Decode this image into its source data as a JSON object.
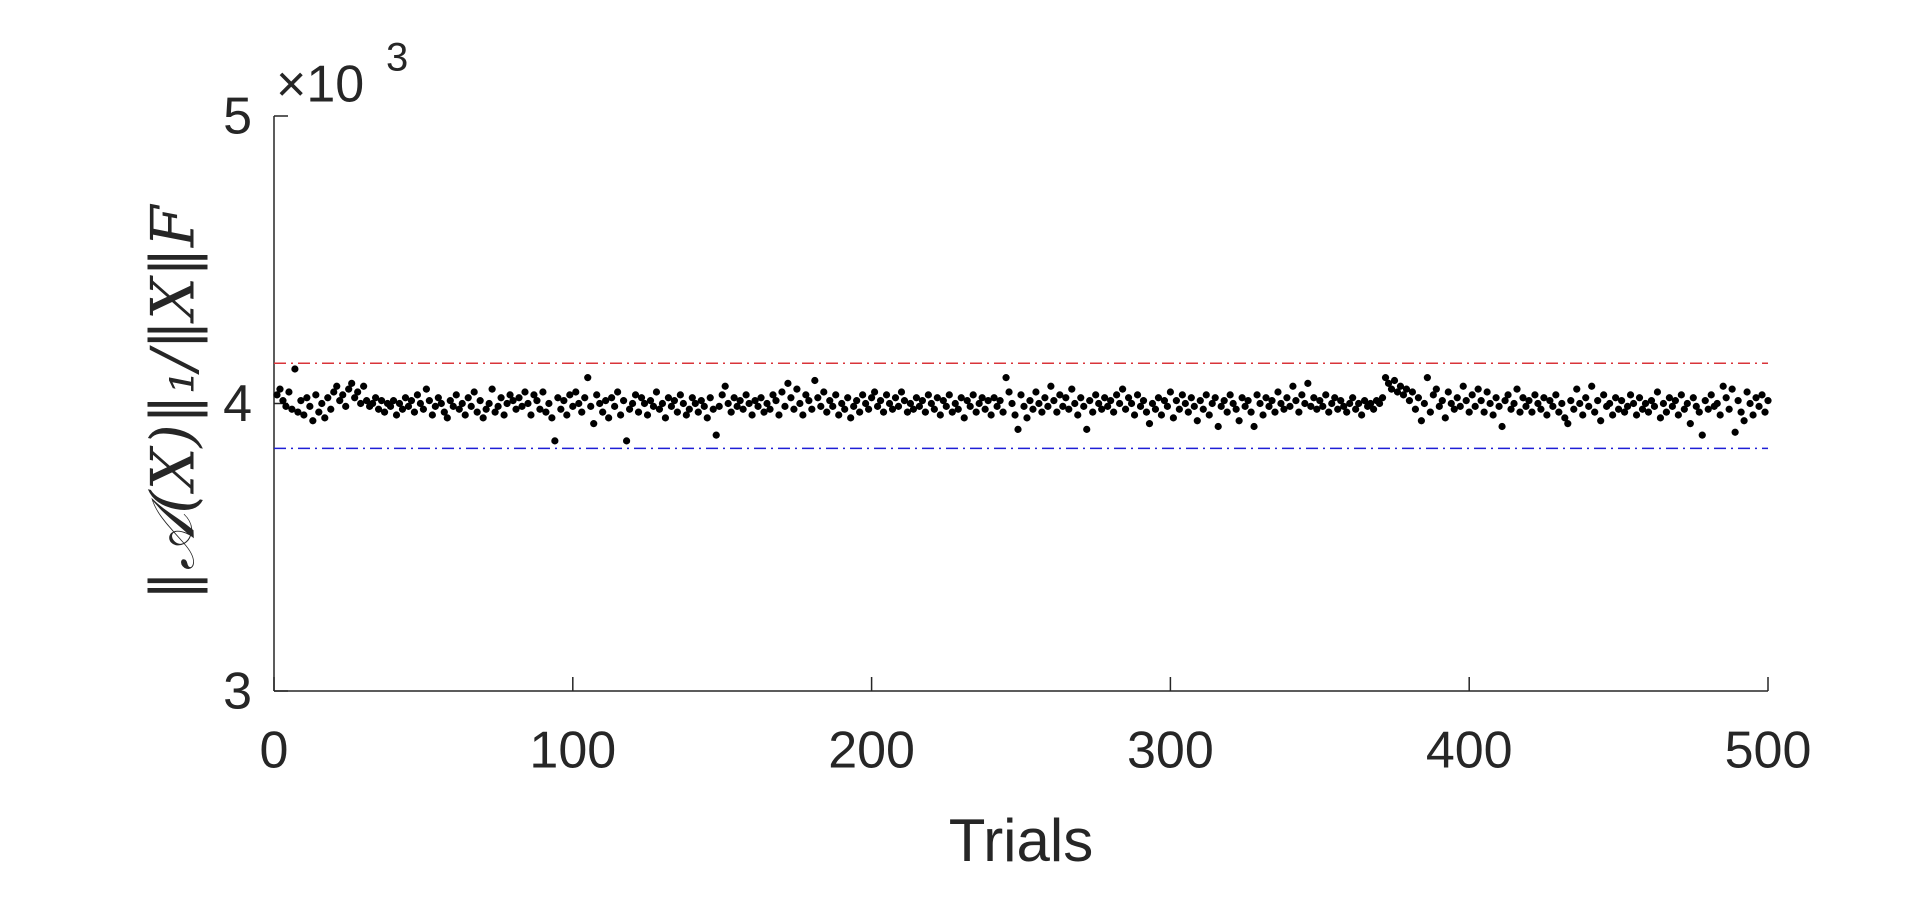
{
  "chart_data": {
    "type": "scatter",
    "xlabel": "Trials",
    "ylabel": "‖𝒜(X)‖₁/‖X‖F",
    "y_exponent_base": "×10",
    "y_exponent": "3",
    "xlim": [
      0,
      500
    ],
    "xticks": [
      0,
      100,
      200,
      300,
      400,
      500
    ],
    "ylim": [
      3,
      5
    ],
    "yticks": [
      3,
      4,
      5
    ],
    "color": "#000000",
    "hlines": [
      {
        "value": 4.14,
        "color": "#d9343a"
      },
      {
        "value": 3.844,
        "color": "#1f1fd6"
      }
    ],
    "x": [
      1,
      2,
      3,
      4,
      5,
      6,
      7,
      8,
      9,
      10,
      11,
      12,
      13,
      14,
      15,
      16,
      17,
      18,
      19,
      20,
      21,
      22,
      23,
      24,
      25,
      26,
      27,
      28,
      29,
      30,
      31,
      32,
      33,
      34,
      35,
      36,
      37,
      38,
      39,
      40,
      41,
      42,
      43,
      44,
      45,
      46,
      47,
      48,
      49,
      50,
      51,
      52,
      53,
      54,
      55,
      56,
      57,
      58,
      59,
      60,
      61,
      62,
      63,
      64,
      65,
      66,
      67,
      68,
      69,
      70,
      71,
      72,
      73,
      74,
      75,
      76,
      77,
      78,
      79,
      80,
      81,
      82,
      83,
      84,
      85,
      86,
      87,
      88,
      89,
      90,
      91,
      92,
      93,
      94,
      95,
      96,
      97,
      98,
      99,
      100,
      101,
      102,
      103,
      104,
      105,
      106,
      107,
      108,
      109,
      110,
      111,
      112,
      113,
      114,
      115,
      116,
      117,
      118,
      119,
      120,
      121,
      122,
      123,
      124,
      125,
      126,
      127,
      128,
      129,
      130,
      131,
      132,
      133,
      134,
      135,
      136,
      137,
      138,
      139,
      140,
      141,
      142,
      143,
      144,
      145,
      146,
      147,
      148,
      149,
      150,
      151,
      152,
      153,
      154,
      155,
      156,
      157,
      158,
      159,
      160,
      161,
      162,
      163,
      164,
      165,
      166,
      167,
      168,
      169,
      170,
      171,
      172,
      173,
      174,
      175,
      176,
      177,
      178,
      179,
      180,
      181,
      182,
      183,
      184,
      185,
      186,
      187,
      188,
      189,
      190,
      191,
      192,
      193,
      194,
      195,
      196,
      197,
      198,
      199,
      200,
      201,
      202,
      203,
      204,
      205,
      206,
      207,
      208,
      209,
      210,
      211,
      212,
      213,
      214,
      215,
      216,
      217,
      218,
      219,
      220,
      221,
      222,
      223,
      224,
      225,
      226,
      227,
      228,
      229,
      230,
      231,
      232,
      233,
      234,
      235,
      236,
      237,
      238,
      239,
      240,
      241,
      242,
      243,
      244,
      245,
      246,
      247,
      248,
      249,
      250,
      251,
      252,
      253,
      254,
      255,
      256,
      257,
      258,
      259,
      260,
      261,
      262,
      263,
      264,
      265,
      266,
      267,
      268,
      269,
      270,
      271,
      272,
      273,
      274,
      275,
      276,
      277,
      278,
      279,
      280,
      281,
      282,
      283,
      284,
      285,
      286,
      287,
      288,
      289,
      290,
      291,
      292,
      293,
      294,
      295,
      296,
      297,
      298,
      299,
      300,
      301,
      302,
      303,
      304,
      305,
      306,
      307,
      308,
      309,
      310,
      311,
      312,
      313,
      314,
      315,
      316,
      317,
      318,
      319,
      320,
      321,
      322,
      323,
      324,
      325,
      326,
      327,
      328,
      329,
      330,
      331,
      332,
      333,
      334,
      335,
      336,
      337,
      338,
      339,
      340,
      341,
      342,
      343,
      344,
      345,
      346,
      347,
      348,
      349,
      350,
      351,
      352,
      353,
      354,
      355,
      356,
      357,
      358,
      359,
      360,
      361,
      362,
      363,
      364,
      365,
      366,
      367,
      368,
      369,
      370,
      371,
      372,
      373,
      374,
      375,
      376,
      377,
      378,
      379,
      380,
      381,
      382,
      383,
      384,
      385,
      386,
      387,
      388,
      389,
      390,
      391,
      392,
      393,
      394,
      395,
      396,
      397,
      398,
      399,
      400,
      401,
      402,
      403,
      404,
      405,
      406,
      407,
      408,
      409,
      410,
      411,
      412,
      413,
      414,
      415,
      416,
      417,
      418,
      419,
      420,
      421,
      422,
      423,
      424,
      425,
      426,
      427,
      428,
      429,
      430,
      431,
      432,
      433,
      434,
      435,
      436,
      437,
      438,
      439,
      440,
      441,
      442,
      443,
      444,
      445,
      446,
      447,
      448,
      449,
      450,
      451,
      452,
      453,
      454,
      455,
      456,
      457,
      458,
      459,
      460,
      461,
      462,
      463,
      464,
      465,
      466,
      467,
      468,
      469,
      470,
      471,
      472,
      473,
      474,
      475,
      476,
      477,
      478,
      479,
      480,
      481,
      482,
      483,
      484,
      485,
      486,
      487,
      488,
      489,
      490,
      491,
      492,
      493,
      494,
      495,
      496,
      497,
      498,
      499,
      500
    ],
    "values": [
      4.03,
      4.05,
      4.01,
      3.99,
      4.04,
      3.98,
      4.12,
      3.97,
      4.01,
      3.96,
      4.02,
      3.99,
      3.94,
      4.03,
      3.97,
      4.0,
      3.95,
      4.02,
      3.98,
      4.04,
      4.06,
      4.01,
      4.03,
      3.99,
      4.05,
      4.07,
      4.02,
      4.04,
      4.0,
      4.06,
      4.01,
      3.99,
      4.0,
      4.02,
      3.98,
      4.01,
      3.97,
      4.0,
      3.99,
      4.01,
      3.96,
      4.0,
      3.98,
      4.02,
      3.99,
      4.01,
      3.97,
      4.03,
      4.0,
      3.98,
      4.05,
      4.01,
      3.96,
      3.99,
      4.02,
      4.0,
      3.97,
      3.95,
      4.01,
      3.99,
      4.03,
      3.98,
      4.0,
      3.96,
      4.02,
      3.99,
      4.04,
      3.97,
      4.01,
      3.95,
      3.98,
      4.0,
      4.05,
      3.97,
      3.99,
      4.02,
      3.96,
      4.0,
      4.03,
      4.01,
      3.98,
      4.02,
      3.99,
      4.04,
      4.0,
      3.96,
      4.03,
      4.01,
      3.98,
      4.04,
      3.97,
      4.0,
      3.95,
      3.87,
      4.02,
      3.98,
      4.01,
      3.96,
      4.03,
      3.99,
      4.04,
      4.0,
      3.97,
      4.02,
      4.09,
      3.99,
      3.93,
      4.03,
      4.0,
      3.97,
      4.01,
      3.95,
      4.02,
      3.99,
      4.04,
      3.96,
      4.01,
      3.87,
      3.98,
      4.0,
      4.03,
      3.97,
      4.02,
      4.0,
      3.96,
      4.01,
      3.99,
      4.04,
      3.98,
      4.0,
      3.95,
      4.02,
      3.99,
      4.01,
      3.97,
      4.03,
      4.0,
      3.96,
      3.98,
      4.02,
      4.0,
      3.97,
      4.01,
      3.99,
      3.95,
      4.02,
      3.98,
      3.89,
      3.99,
      4.03,
      4.06,
      4.0,
      3.97,
      4.02,
      3.99,
      4.01,
      3.98,
      4.03,
      4.0,
      3.96,
      4.01,
      3.99,
      4.02,
      3.97,
      4.0,
      3.98,
      4.03,
      4.01,
      3.96,
      4.04,
      3.99,
      4.07,
      4.02,
      3.98,
      4.05,
      4.0,
      3.96,
      4.03,
      4.01,
      3.98,
      4.08,
      4.02,
      3.99,
      4.04,
      3.97,
      4.01,
      3.99,
      4.03,
      3.96,
      4.0,
      3.98,
      4.02,
      3.95,
      3.99,
      4.01,
      3.97,
      4.03,
      4.0,
      3.98,
      4.02,
      4.04,
      3.99,
      4.01,
      3.97,
      4.03,
      4.0,
      3.98,
      4.02,
      3.99,
      4.04,
      4.01,
      3.97,
      4.0,
      3.98,
      4.02,
      3.99,
      4.01,
      3.97,
      4.03,
      4.0,
      3.98,
      4.02,
      3.96,
      4.01,
      3.99,
      4.03,
      3.97,
      4.0,
      3.98,
      4.02,
      3.95,
      4.01,
      3.99,
      4.03,
      3.97,
      4.0,
      4.02,
      3.98,
      4.01,
      3.96,
      4.02,
      3.99,
      4.01,
      3.97,
      4.09,
      4.04,
      4.0,
      3.96,
      3.91,
      4.03,
      3.99,
      3.95,
      4.01,
      3.98,
      4.04,
      4.0,
      3.97,
      4.02,
      3.99,
      4.06,
      4.01,
      3.97,
      4.03,
      3.99,
      4.02,
      3.98,
      4.05,
      4.0,
      3.96,
      4.02,
      3.99,
      3.91,
      4.01,
      3.97,
      4.03,
      4.0,
      3.98,
      4.02,
      3.99,
      4.01,
      3.97,
      4.03,
      4.0,
      4.05,
      3.98,
      4.02,
      4.0,
      3.96,
      4.03,
      3.99,
      4.01,
      3.97,
      3.93,
      4.0,
      3.98,
      4.02,
      3.96,
      4.01,
      3.99,
      4.04,
      3.95,
      4.01,
      3.98,
      4.03,
      4.0,
      3.97,
      4.02,
      3.99,
      3.94,
      4.01,
      3.98,
      4.03,
      3.96,
      4.0,
      4.02,
      3.92,
      3.99,
      4.01,
      3.97,
      4.03,
      4.0,
      3.98,
      3.94,
      4.02,
      3.99,
      4.01,
      3.97,
      3.92,
      4.03,
      4.0,
      3.96,
      4.02,
      3.99,
      4.01,
      3.97,
      4.04,
      4.0,
      3.98,
      4.02,
      3.99,
      4.06,
      4.01,
      3.97,
      4.03,
      4.0,
      4.07,
      3.99,
      4.02,
      3.98,
      4.01,
      3.99,
      4.03,
      3.97,
      4.0,
      4.02,
      3.98,
      4.01,
      3.99,
      3.97,
      4.0,
      4.02,
      3.98,
      4.0,
      3.96,
      4.01,
      3.99,
      4.0,
      3.98,
      4.01,
      4.0,
      4.02,
      4.09,
      4.07,
      4.05,
      4.08,
      4.04,
      4.06,
      4.03,
      4.05,
      4.01,
      4.04,
      3.98,
      4.02,
      3.94,
      4.0,
      4.09,
      3.97,
      4.03,
      4.05,
      3.99,
      4.01,
      3.95,
      4.04,
      4.0,
      3.98,
      4.02,
      3.99,
      4.06,
      4.01,
      3.97,
      4.03,
      3.99,
      4.05,
      4.01,
      3.97,
      4.04,
      4.0,
      3.96,
      4.02,
      3.99,
      3.92,
      4.01,
      4.03,
      3.98,
      4.0,
      4.05,
      3.97,
      4.02,
      3.99,
      4.01,
      3.97,
      4.03,
      4.0,
      3.98,
      4.02,
      3.96,
      4.01,
      3.99,
      4.03,
      3.97,
      4.0,
      3.95,
      3.93,
      4.01,
      3.98,
      4.05,
      4.0,
      3.96,
      4.02,
      3.99,
      4.06,
      3.97,
      4.01,
      3.94,
      4.03,
      3.99,
      4.0,
      3.96,
      4.02,
      3.98,
      4.01,
      3.97,
      3.99,
      4.03,
      4.0,
      3.96,
      4.02,
      3.98,
      4.0,
      3.97,
      4.01,
      3.99,
      4.04,
      3.95,
      4.0,
      3.97,
      4.02,
      3.99,
      4.01,
      3.96,
      4.03,
      3.98,
      4.0,
      3.93,
      4.02,
      3.99,
      3.97,
      3.89,
      4.01,
      3.98,
      4.03,
      3.99,
      4.0,
      3.96,
      4.06,
      4.02,
      3.98,
      4.05,
      3.9,
      4.01,
      3.97,
      3.94,
      4.04,
      4.0,
      3.96,
      4.02,
      3.99,
      4.03,
      3.97,
      4.01
    ]
  }
}
